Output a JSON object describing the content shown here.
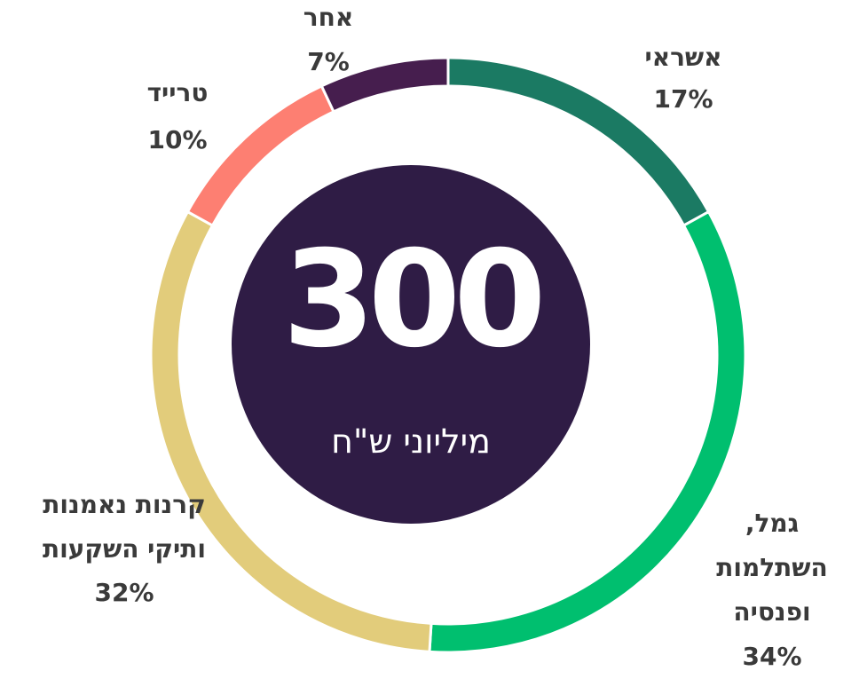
{
  "chart_data": {
    "type": "donut",
    "categories": [
      "אשראי",
      "גמל,\nהשתלמות\nופנסיה",
      "קרנות נאמנות\nותיקי השקעות",
      "טרייד",
      "אחר"
    ],
    "values": [
      17,
      34,
      32,
      10,
      7
    ],
    "value_labels": [
      "17%",
      "34%",
      "32%",
      "10%",
      "7%"
    ],
    "colors": [
      "#1b7a63",
      "#00bf6f",
      "#e2cc7b",
      "#fd7f72",
      "#461e4e"
    ],
    "center_value": 300,
    "center_label": "מיליוני ש\"ח"
  }
}
